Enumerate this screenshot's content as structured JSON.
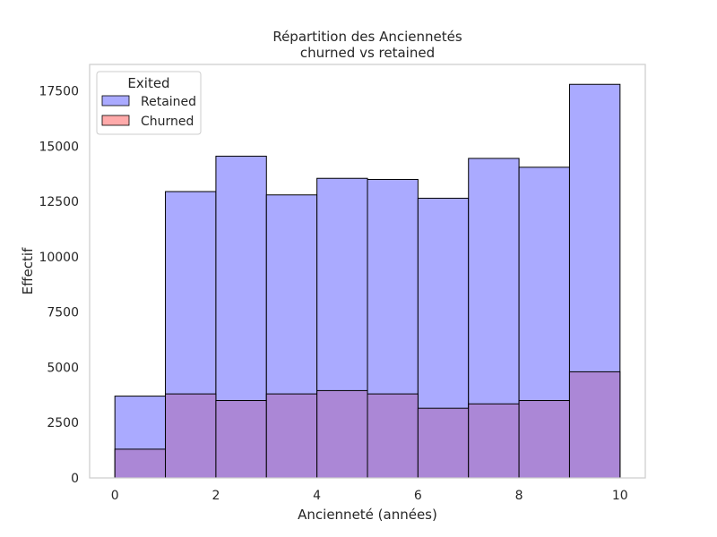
{
  "chart_data": {
    "type": "bar",
    "title": "Répartition des Anciennetés",
    "subtitle": "churned vs retained",
    "xlabel": "Ancienneté (années)",
    "ylabel": "Effectif",
    "xlim": [
      -0.5,
      10.5
    ],
    "ylim": [
      0,
      18700
    ],
    "xticks": [
      "0",
      "2",
      "4",
      "6",
      "8",
      "10"
    ],
    "yticks": [
      "0",
      "2500",
      "5000",
      "7500",
      "10000",
      "12500",
      "15000",
      "17500"
    ],
    "bins": [
      [
        0,
        1
      ],
      [
        1,
        2
      ],
      [
        2,
        3
      ],
      [
        3,
        4
      ],
      [
        4,
        5
      ],
      [
        5,
        6
      ],
      [
        6,
        7
      ],
      [
        7,
        8
      ],
      [
        8,
        9
      ],
      [
        9,
        10
      ]
    ],
    "grid": false,
    "legend": {
      "title": "Exited",
      "placement": "top-left",
      "entries": [
        "Retained",
        "Churned"
      ]
    },
    "series": [
      {
        "name": "Retained",
        "color": "#aaaaff",
        "values": [
          3700,
          12950,
          14550,
          12800,
          13550,
          13500,
          12650,
          14450,
          14050,
          17800
        ]
      },
      {
        "name": "Churned",
        "color": "#ffaaaa",
        "overlap_color": "#ab87d6",
        "values": [
          1300,
          3800,
          3500,
          3800,
          3950,
          3800,
          3150,
          3350,
          3500,
          4800
        ]
      }
    ]
  }
}
